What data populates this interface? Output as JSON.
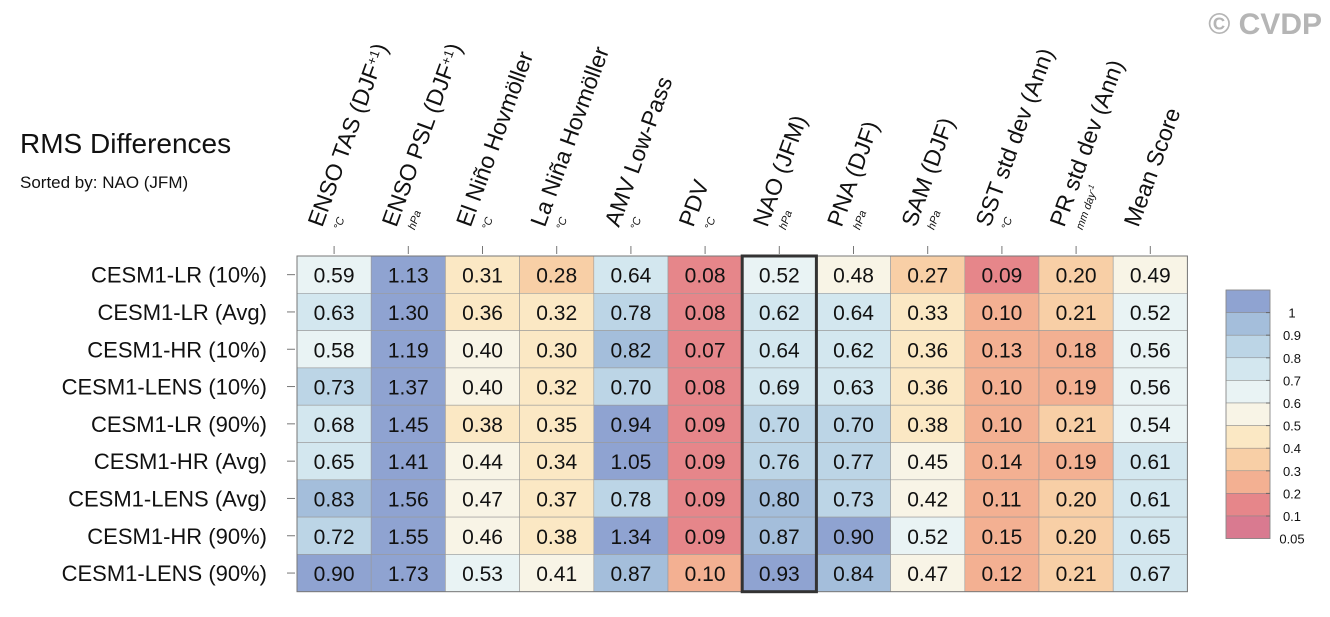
{
  "watermark": "© CVDP",
  "chart_data": {
    "type": "heatmap",
    "title": "RMS Differences",
    "subtitle": "Sorted by: NAO (JFM)",
    "highlight_column": "NAO (JFM)",
    "columns": [
      {
        "label": "ENSO TAS (DJF",
        "sup": "+1",
        "close": ")",
        "unit": "°C"
      },
      {
        "label": "ENSO PSL (DJF",
        "sup": "+1",
        "close": ")",
        "unit": "hPa"
      },
      {
        "label": "El Niño Hovmöller",
        "sup": "",
        "close": "",
        "unit": "°C"
      },
      {
        "label": "La Niña Hovmöller",
        "sup": "",
        "close": "",
        "unit": "°C"
      },
      {
        "label": "AMV Low-Pass",
        "sup": "",
        "close": "",
        "unit": "°C"
      },
      {
        "label": "PDV",
        "sup": "",
        "close": "",
        "unit": "°C"
      },
      {
        "label": "NAO (JFM)",
        "sup": "",
        "close": "",
        "unit": "hPa"
      },
      {
        "label": "PNA (DJF)",
        "sup": "",
        "close": "",
        "unit": "hPa"
      },
      {
        "label": "SAM (DJF)",
        "sup": "",
        "close": "",
        "unit": "hPa"
      },
      {
        "label": "SST std dev (Ann)",
        "sup": "",
        "close": "",
        "unit": "°C"
      },
      {
        "label": "PR std dev (Ann)",
        "sup": "",
        "close": "",
        "unit": "mm day-1"
      },
      {
        "label": "Mean Score",
        "sup": "",
        "close": "",
        "unit": ""
      }
    ],
    "rows": [
      "CESM1-LR (10%)",
      "CESM1-LR (Avg)",
      "CESM1-HR (10%)",
      "CESM1-LENS (10%)",
      "CESM1-LR (90%)",
      "CESM1-HR (Avg)",
      "CESM1-LENS (Avg)",
      "CESM1-HR (90%)",
      "CESM1-LENS (90%)"
    ],
    "values": [
      [
        "0.59",
        "1.13",
        "0.31",
        "0.28",
        "0.64",
        "0.08",
        "0.52",
        "0.48",
        "0.27",
        "0.09",
        "0.20",
        "0.49"
      ],
      [
        "0.63",
        "1.30",
        "0.36",
        "0.32",
        "0.78",
        "0.08",
        "0.62",
        "0.64",
        "0.33",
        "0.10",
        "0.21",
        "0.52"
      ],
      [
        "0.58",
        "1.19",
        "0.40",
        "0.30",
        "0.82",
        "0.07",
        "0.64",
        "0.62",
        "0.36",
        "0.13",
        "0.18",
        "0.56"
      ],
      [
        "0.73",
        "1.37",
        "0.40",
        "0.32",
        "0.70",
        "0.08",
        "0.69",
        "0.63",
        "0.36",
        "0.10",
        "0.19",
        "0.56"
      ],
      [
        "0.68",
        "1.45",
        "0.38",
        "0.35",
        "0.94",
        "0.09",
        "0.70",
        "0.70",
        "0.38",
        "0.10",
        "0.21",
        "0.54"
      ],
      [
        "0.65",
        "1.41",
        "0.44",
        "0.34",
        "1.05",
        "0.09",
        "0.76",
        "0.77",
        "0.45",
        "0.14",
        "0.19",
        "0.61"
      ],
      [
        "0.83",
        "1.56",
        "0.47",
        "0.37",
        "0.78",
        "0.09",
        "0.80",
        "0.73",
        "0.42",
        "0.11",
        "0.20",
        "0.61"
      ],
      [
        "0.72",
        "1.55",
        "0.46",
        "0.38",
        "1.34",
        "0.09",
        "0.87",
        "0.90",
        "0.52",
        "0.15",
        "0.20",
        "0.65"
      ],
      [
        "0.90",
        "1.73",
        "0.53",
        "0.41",
        "0.87",
        "0.10",
        "0.93",
        "0.84",
        "0.47",
        "0.12",
        "0.21",
        "0.67"
      ]
    ],
    "colorbar": {
      "labels": [
        "1",
        "0.9",
        "0.8",
        "0.7",
        "0.6",
        "0.5",
        "0.4",
        "0.3",
        "0.2",
        "0.1",
        "0.05"
      ],
      "colors": [
        "#8fa3d1",
        "#a4bedb",
        "#bcd5e6",
        "#d3e7ef",
        "#e9f3f4",
        "#f8f4e6",
        "#fbe8c4",
        "#f8cfa6",
        "#f3b092",
        "#e6868a",
        "#d97a90"
      ]
    }
  }
}
